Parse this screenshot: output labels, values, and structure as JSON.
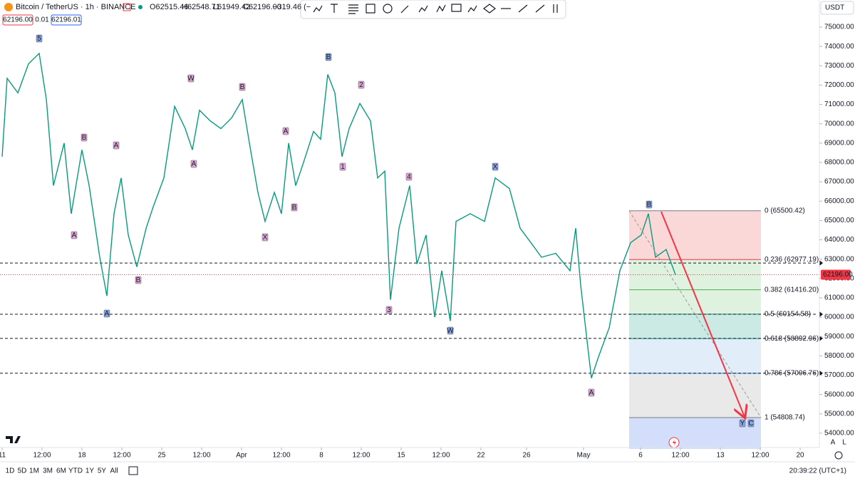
{
  "header": {
    "symbol": "Bitcoin / TetherUS · 1h · BINANCE",
    "open": "O62515.46",
    "high": "H62548.71",
    "low": "L61949.42",
    "close": "C62196.00",
    "change": "−319.46 (−"
  },
  "trade": {
    "sell": "62196.00",
    "spread": "0.01",
    "buy": "62196.01"
  },
  "currency": "USDT",
  "chart_data": {
    "type": "line",
    "color": "#089981",
    "x": [
      0,
      0.44,
      1.38,
      2.31,
      3.25,
      3.88,
      4.5,
      5.44,
      6.06,
      7,
      7.63,
      8.56,
      9.19,
      9.81,
      10.44,
      11.06,
      11.81,
      12.63,
      13.25,
      14.19,
      15.13,
      16.06,
      16.69,
      17.31,
      18.25,
      19.19,
      20.13,
      21.06,
      21.69,
      22.44,
      23.06,
      23.88,
      24.5,
      25.13,
      25.75,
      26.38,
      27.31,
      27.94,
      28.56,
      29.19,
      29.81,
      30.44,
      31.38,
      32.31,
      32.94,
      33.56,
      34.06,
      34.81,
      35.75,
      36.38,
      37.19,
      37.94,
      38.56,
      39.31,
      39.81,
      41.06,
      42.31,
      43.25,
      44.5,
      45.44,
      46.38,
      47.31,
      48.56,
      49.81,
      50.31,
      50.75,
      51.69,
      52.31,
      53.25,
      54.19,
      55.13,
      56.06,
      56.69,
      57.31,
      58.25,
      59.06
    ],
    "values": [
      68300,
      72350,
      71600,
      73100,
      73640,
      71250,
      66800,
      69000,
      65350,
      68650,
      66800,
      63100,
      61100,
      65350,
      67200,
      64250,
      62600,
      64600,
      65700,
      67200,
      70900,
      69750,
      68650,
      70700,
      70150,
      69750,
      70300,
      71250,
      69000,
      66450,
      64950,
      66450,
      65350,
      69000,
      66800,
      67900,
      69600,
      69200,
      72550,
      71600,
      68300,
      69750,
      71050,
      70150,
      67200,
      67550,
      60900,
      64600,
      66800,
      62750,
      64250,
      60000,
      62400,
      59800,
      64950,
      65350,
      64950,
      67200,
      66650,
      64600,
      63850,
      63100,
      63300,
      62400,
      64600,
      61650,
      56850,
      57950,
      59450,
      62400,
      63850,
      64250,
      65350,
      63100,
      63500,
      62196
    ],
    "xlim": [
      0,
      71.5
    ],
    "xticks": [
      {
        "value": 0,
        "label": "11"
      },
      {
        "value": 3.5,
        "label": "12:00"
      },
      {
        "value": 7,
        "label": "18"
      },
      {
        "value": 10.5,
        "label": "12:00"
      },
      {
        "value": 14,
        "label": "25"
      },
      {
        "value": 17.5,
        "label": "12:00"
      },
      {
        "value": 21,
        "label": "Apr"
      },
      {
        "value": 24.5,
        "label": "12:00"
      },
      {
        "value": 28,
        "label": "8"
      },
      {
        "value": 31.5,
        "label": "12:00"
      },
      {
        "value": 35,
        "label": "15"
      },
      {
        "value": 38.5,
        "label": "12:00"
      },
      {
        "value": 42,
        "label": "22"
      },
      {
        "value": 46,
        "label": "26"
      },
      {
        "value": 51,
        "label": "May"
      },
      {
        "value": 56,
        "label": "6"
      },
      {
        "value": 59.5,
        "label": "12:00"
      },
      {
        "value": 63,
        "label": "13"
      },
      {
        "value": 66.5,
        "label": "12:00"
      },
      {
        "value": 70,
        "label": "20"
      }
    ],
    "ylim": [
      53260,
      76400
    ],
    "yticks": [
      {
        "value": 54000,
        "label": "54000.00"
      },
      {
        "value": 55000,
        "label": "55000.00"
      },
      {
        "value": 56000,
        "label": "56000.00"
      },
      {
        "value": 57000,
        "label": "57000.00"
      },
      {
        "value": 58000,
        "label": "58000.00"
      },
      {
        "value": 59000,
        "label": "59000.00"
      },
      {
        "value": 60000,
        "label": "60000.00"
      },
      {
        "value": 61000,
        "label": "61000.00"
      },
      {
        "value": 62000,
        "label": "62000.00"
      },
      {
        "value": 63000,
        "label": "63000.00"
      },
      {
        "value": 64000,
        "label": "64000.00"
      },
      {
        "value": 65000,
        "label": "65000.00"
      },
      {
        "value": 66000,
        "label": "66000.00"
      },
      {
        "value": 67000,
        "label": "67000.00"
      },
      {
        "value": 68000,
        "label": "68000.00"
      },
      {
        "value": 69000,
        "label": "69000.00"
      },
      {
        "value": 70000,
        "label": "70000.00"
      },
      {
        "value": 71000,
        "label": "71000.00"
      },
      {
        "value": 72000,
        "label": "72000.00"
      },
      {
        "value": 73000,
        "label": "73000.00"
      },
      {
        "value": 74000,
        "label": "74000.00"
      },
      {
        "value": 75000,
        "label": "75000.00"
      }
    ],
    "last_price": {
      "value": 62196,
      "label": "62196.00"
    },
    "levels": [
      62800,
      60150,
      58900,
      57100
    ],
    "fib": [
      {
        "value": 65500.42,
        "label": "0 (65500.42)"
      },
      {
        "value": 62977.19,
        "label": "0.236 (62977.19)"
      },
      {
        "value": 61416.2,
        "label": "0.382 (61416.20)"
      },
      {
        "value": 60154.58,
        "label": "0.5 (60154.58)"
      },
      {
        "value": 58892.96,
        "label": "0.618 (58892.96)"
      },
      {
        "value": 57096.76,
        "label": "0.786 (57096.76)"
      },
      {
        "value": 54808.74,
        "label": "1 (54808.74)"
      }
    ],
    "fib_colors": [
      "#f7a9a9",
      "#b7e0b7",
      "#b7e0b7",
      "#8fd1c4",
      "#bcdaf5",
      "#cfcfcf",
      "#9bb6f5"
    ],
    "fib_line_colors": [
      "#787b86",
      "#f23645",
      "#4caf50",
      "#089981",
      "#089981",
      "#2196f3",
      "#787b86"
    ],
    "wave_labels": [
      "5",
      "B",
      "A",
      "A",
      "A",
      "B",
      "W",
      "A",
      "B",
      "X",
      "A",
      "B",
      "B",
      "1",
      "2",
      "3",
      "4",
      "W",
      "X",
      "A",
      "B",
      "Y",
      "C"
    ]
  },
  "timeframes": [
    "1D",
    "5D",
    "1M",
    "3M",
    "6M",
    "YTD",
    "1Y",
    "5Y",
    "All"
  ],
  "clock": "20:39:22 (UTC+1)",
  "scale_buttons": [
    "A",
    "L"
  ]
}
